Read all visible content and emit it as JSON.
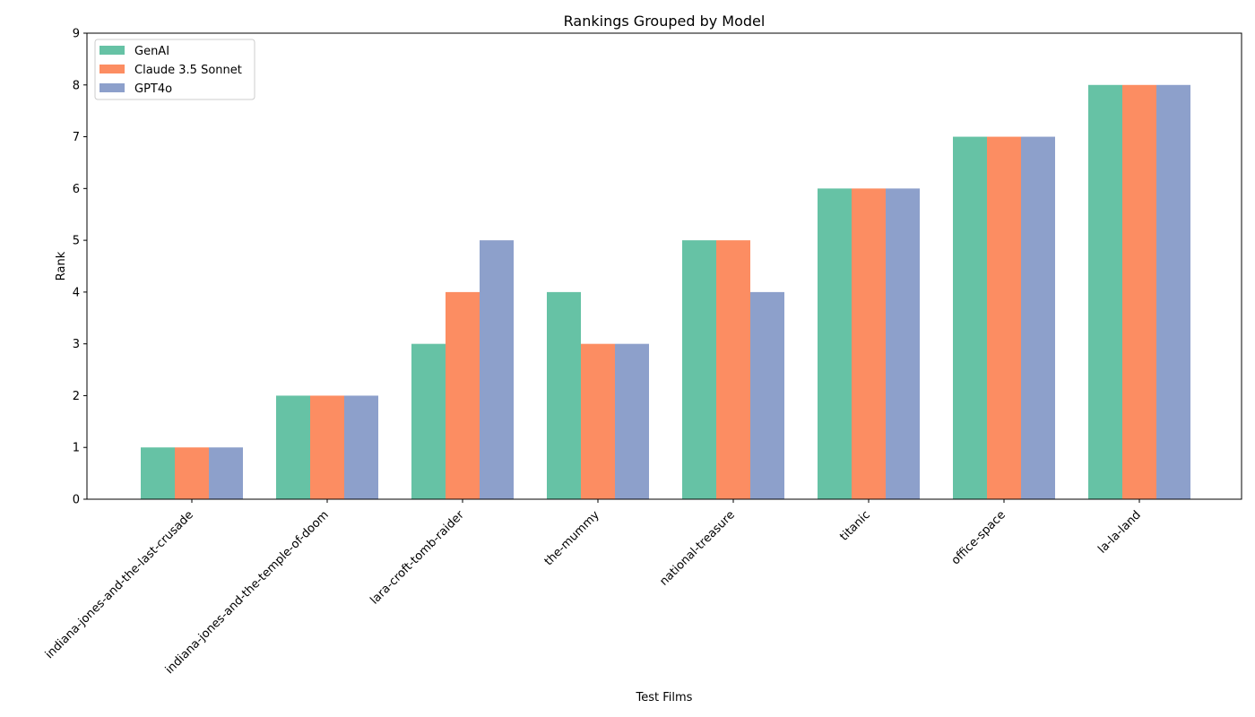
{
  "chart_data": {
    "type": "bar",
    "title": "Rankings Grouped by Model",
    "xlabel": "Test Films",
    "ylabel": "Rank",
    "ylim": [
      0,
      9
    ],
    "yticks": [
      0,
      1,
      2,
      3,
      4,
      5,
      6,
      7,
      8,
      9
    ],
    "grid": false,
    "legend_position": "top-left",
    "categories": [
      "indiana-jones-and-the-last-crusade",
      "indiana-jones-and-the-temple-of-doom",
      "lara-croft-tomb-raider",
      "the-mummy",
      "national-treasure",
      "titanic",
      "office-space",
      "la-la-land"
    ],
    "series": [
      {
        "name": "GenAI",
        "color": "#66c2a5",
        "values": [
          1,
          2,
          3,
          4,
          5,
          6,
          7,
          8
        ]
      },
      {
        "name": "Claude 3.5 Sonnet",
        "color": "#fc8d62",
        "values": [
          1,
          2,
          4,
          3,
          5,
          6,
          7,
          8
        ]
      },
      {
        "name": "GPT4o",
        "color": "#8da0cb",
        "values": [
          1,
          2,
          5,
          3,
          4,
          6,
          7,
          8
        ]
      }
    ]
  }
}
